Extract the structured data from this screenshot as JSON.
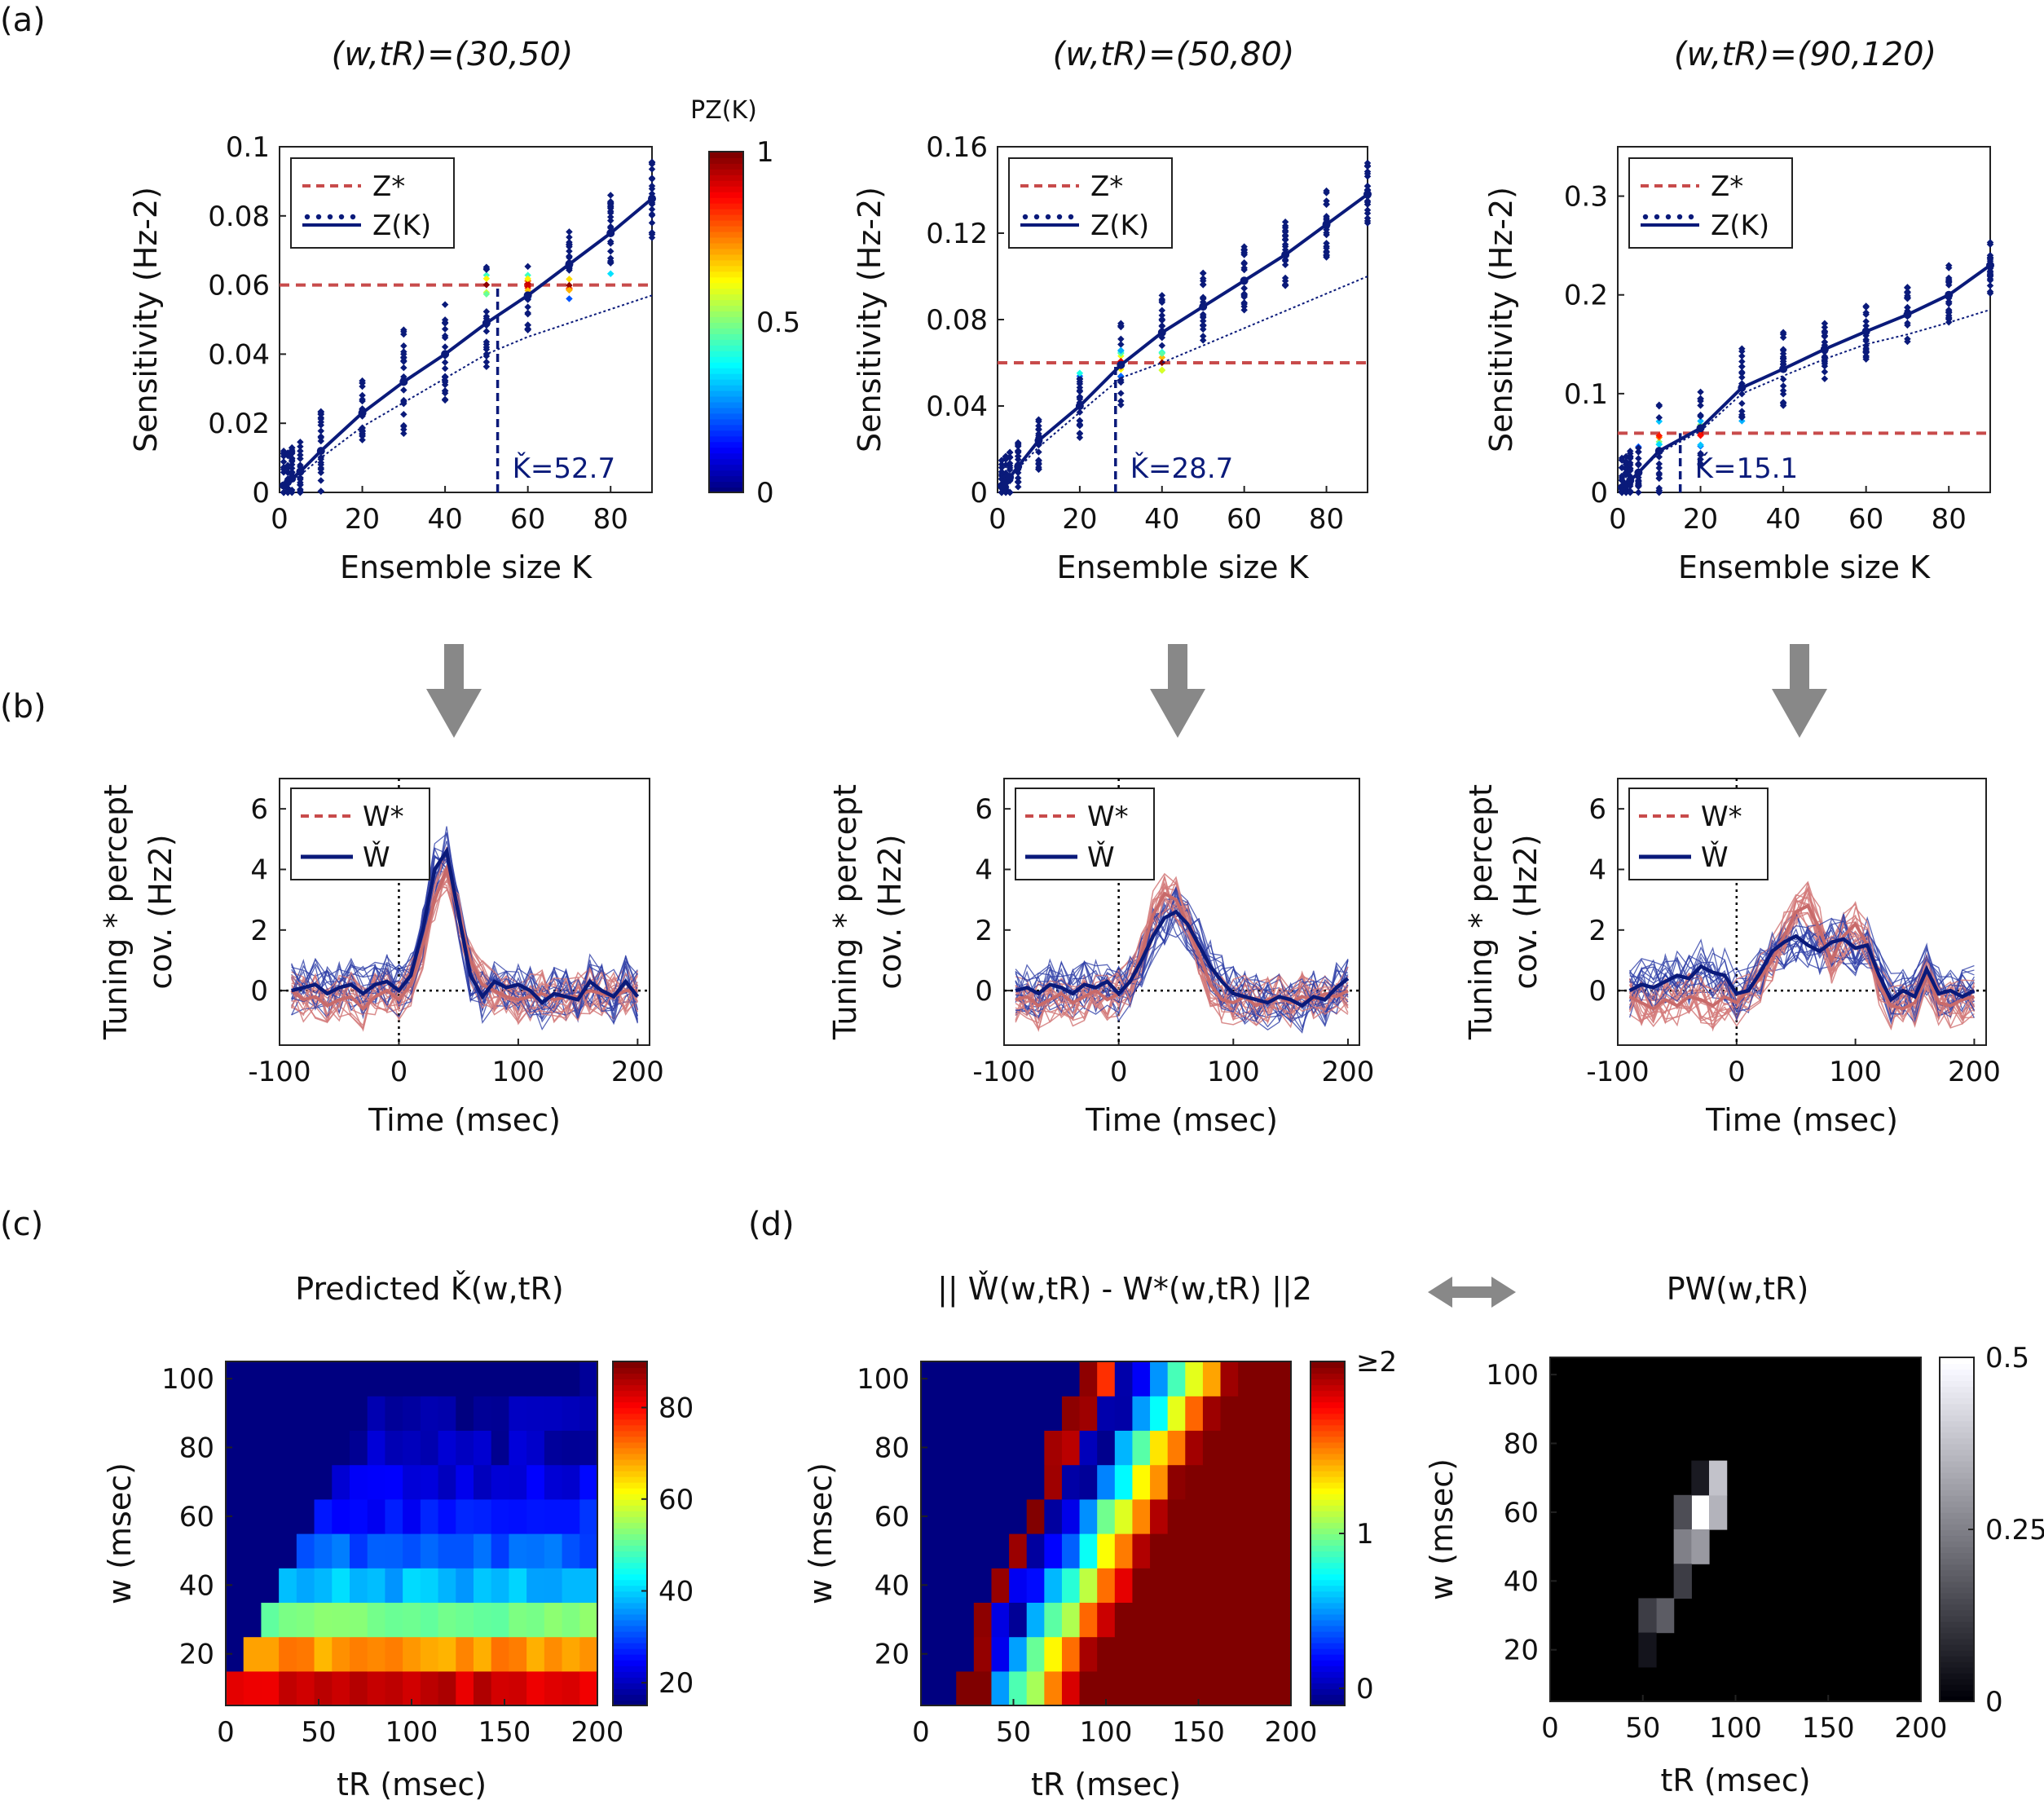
{
  "panel_labels": [
    "(a)",
    "(b)",
    "(c)",
    "(d)"
  ],
  "colors": {
    "navy": "#0a1a7a",
    "red_dashed": "#c84b4b",
    "red_trace": "#d47a7a",
    "arrow": "#888888"
  },
  "panel_a": {
    "titles": [
      "(w,tR)=(30,50)",
      "(w,tR)=(50,80)",
      "(w,tR)=(90,120)"
    ],
    "xlabel": "Ensemble size K",
    "ylabel": "Sensitivity (Hz-2)",
    "legend": [
      "Z*",
      "Z(K)"
    ],
    "colorbar_label": "PZ(K)",
    "colorbar_ticks": [
      "0",
      "0.5",
      "1"
    ],
    "k_labels": [
      "Ǩ=52.7",
      "Ǩ=28.7",
      "Ǩ=15.1"
    ]
  },
  "panel_b": {
    "xlabel": "Time (msec)",
    "ylabel_line1": "Tuning * percept",
    "ylabel_line2": "cov. (Hz2)",
    "legend": [
      "W*",
      "W̌"
    ]
  },
  "panel_c": {
    "title": "Predicted Ǩ(w,tR)",
    "xlabel": "tR (msec)",
    "ylabel": "w (msec)",
    "colorbar_ticks": [
      "20",
      "40",
      "60",
      "80"
    ]
  },
  "panel_d": {
    "title_left": "|| W̌(w,tR) - W*(w,tR) ||2",
    "title_right": "PW(w,tR)",
    "xlabel": "tR (msec)",
    "ylabel": "w (msec)",
    "colorbar_left_ticks": [
      "0",
      "1",
      "≥2"
    ],
    "colorbar_right_ticks": [
      "0",
      "0.25",
      "0.5"
    ]
  },
  "chart_data": [
    {
      "id": "a1",
      "type": "scatter",
      "title": "(w,tR)=(30,50)",
      "xlabel": "Ensemble size K",
      "ylabel": "Sensitivity (Hz-2)",
      "xlim": [
        0,
        90
      ],
      "ylim": [
        0,
        0.1
      ],
      "xticks": [
        0,
        20,
        40,
        60,
        80
      ],
      "yticks": [
        0,
        0.02,
        0.04,
        0.06,
        0.08,
        0.1
      ],
      "ytick_labels": [
        "0",
        "0.02",
        "0.04",
        "0.06",
        "0.08",
        "0.1"
      ],
      "z_star": 0.06,
      "k_check": 52.7,
      "x": [
        1,
        2,
        3,
        5,
        10,
        20,
        30,
        40,
        50,
        60,
        70,
        80,
        90
      ],
      "z_mean": [
        0.002,
        0.003,
        0.004,
        0.006,
        0.012,
        0.023,
        0.032,
        0.04,
        0.049,
        0.057,
        0.066,
        0.075,
        0.085
      ],
      "z_dotted": [
        0.002,
        0.003,
        0.004,
        0.005,
        0.01,
        0.019,
        0.026,
        0.033,
        0.04,
        0.045,
        0.049,
        0.053,
        0.057
      ],
      "spread": [
        0.01,
        0.01,
        0.01,
        0.01,
        0.012,
        0.01,
        0.016,
        0.015,
        0.02,
        0.013,
        0.011,
        0.012,
        0.012
      ]
    },
    {
      "id": "a2",
      "type": "scatter",
      "title": "(w,tR)=(50,80)",
      "xlabel": "Ensemble size K",
      "ylabel": "Sensitivity (Hz-2)",
      "xlim": [
        0,
        90
      ],
      "ylim": [
        0,
        0.16
      ],
      "xticks": [
        0,
        20,
        40,
        60,
        80
      ],
      "yticks": [
        0,
        0.04,
        0.08,
        0.12,
        0.16
      ],
      "ytick_labels": [
        "0",
        "0.04",
        "0.08",
        "0.12",
        "0.16"
      ],
      "z_star": 0.06,
      "k_check": 28.7,
      "x": [
        1,
        2,
        3,
        5,
        10,
        20,
        30,
        40,
        50,
        60,
        70,
        80,
        90
      ],
      "z_mean": [
        0.003,
        0.005,
        0.007,
        0.012,
        0.024,
        0.04,
        0.059,
        0.074,
        0.086,
        0.098,
        0.11,
        0.124,
        0.138
      ],
      "z_dotted": [
        0.003,
        0.005,
        0.007,
        0.011,
        0.021,
        0.037,
        0.053,
        0.06,
        0.068,
        0.076,
        0.084,
        0.092,
        0.1
      ],
      "spread": [
        0.012,
        0.012,
        0.012,
        0.012,
        0.014,
        0.016,
        0.02,
        0.018,
        0.016,
        0.016,
        0.016,
        0.016,
        0.016
      ]
    },
    {
      "id": "a3",
      "type": "scatter",
      "title": "(w,tR)=(90,120)",
      "xlabel": "Ensemble size K",
      "ylabel": "Sensitivity (Hz-2)",
      "xlim": [
        0,
        90
      ],
      "ylim": [
        0,
        0.35
      ],
      "xticks": [
        0,
        20,
        40,
        60,
        80
      ],
      "yticks": [
        0,
        0.1,
        0.2,
        0.3
      ],
      "ytick_labels": [
        "0",
        "0.1",
        "0.2",
        "0.3"
      ],
      "z_star": 0.06,
      "k_check": 15.1,
      "x": [
        1,
        2,
        3,
        5,
        10,
        20,
        30,
        40,
        50,
        60,
        70,
        80,
        90
      ],
      "z_mean": [
        0.005,
        0.008,
        0.012,
        0.02,
        0.042,
        0.065,
        0.106,
        0.125,
        0.145,
        0.163,
        0.18,
        0.2,
        0.23
      ],
      "z_dotted": [
        0.005,
        0.008,
        0.012,
        0.02,
        0.04,
        0.062,
        0.1,
        0.118,
        0.135,
        0.15,
        0.16,
        0.172,
        0.185
      ],
      "spread": [
        0.03,
        0.03,
        0.03,
        0.03,
        0.05,
        0.04,
        0.04,
        0.04,
        0.03,
        0.03,
        0.03,
        0.03,
        0.03
      ]
    },
    {
      "id": "b1",
      "type": "line",
      "xlabel": "Time (msec)",
      "ylabel": "Tuning * percept cov. (Hz2)",
      "xlim": [
        -100,
        210
      ],
      "ylim": [
        -1.8,
        7
      ],
      "xticks": [
        -100,
        0,
        100,
        200
      ],
      "yticks": [
        0,
        2,
        4,
        6
      ],
      "series": [
        {
          "name": "W*",
          "x": [
            -90,
            -80,
            -70,
            -60,
            -50,
            -40,
            -30,
            -20,
            -10,
            0,
            10,
            20,
            30,
            40,
            50,
            60,
            70,
            80,
            90,
            100,
            110,
            120,
            130,
            140,
            150,
            160,
            170,
            180,
            190,
            200
          ],
          "y": [
            0,
            -0.3,
            -0.2,
            -0.5,
            -0.3,
            -0.2,
            -0.6,
            -0.2,
            0,
            -0.3,
            0.2,
            1.5,
            3.0,
            4.0,
            2.5,
            1.0,
            0.2,
            0,
            -0.2,
            -0.3,
            -0.2,
            -0.1,
            -0.3,
            -0.2,
            -0.2,
            0,
            -0.1,
            -0.2,
            0,
            0
          ]
        },
        {
          "name": "W̌",
          "x": [
            -90,
            -80,
            -70,
            -60,
            -50,
            -40,
            -30,
            -20,
            -10,
            0,
            10,
            20,
            30,
            40,
            50,
            60,
            70,
            80,
            90,
            100,
            110,
            120,
            130,
            140,
            150,
            160,
            170,
            180,
            190,
            200
          ],
          "y": [
            0,
            0.1,
            0.2,
            -0.1,
            0.1,
            0.2,
            -0.1,
            0.2,
            0.3,
            0,
            0.5,
            2.0,
            4.0,
            4.6,
            2.5,
            0.5,
            -0.2,
            0.3,
            0.1,
            0.2,
            0,
            -0.4,
            -0.1,
            -0.2,
            -0.3,
            0.3,
            0,
            -0.2,
            0.3,
            -0.2
          ]
        }
      ]
    },
    {
      "id": "b2",
      "type": "line",
      "xlabel": "Time (msec)",
      "ylabel": "Tuning * percept cov. (Hz2)",
      "xlim": [
        -100,
        210
      ],
      "ylim": [
        -1.8,
        7
      ],
      "xticks": [
        -100,
        0,
        100,
        200
      ],
      "yticks": [
        0,
        2,
        4,
        6
      ],
      "series": [
        {
          "name": "W*",
          "x": [
            -90,
            -80,
            -70,
            -60,
            -50,
            -40,
            -30,
            -20,
            -10,
            0,
            10,
            20,
            30,
            40,
            50,
            60,
            70,
            80,
            90,
            100,
            110,
            120,
            130,
            140,
            150,
            160,
            170,
            180,
            190,
            200
          ],
          "y": [
            -0.3,
            -0.2,
            -0.5,
            -0.3,
            -0.1,
            -0.4,
            -0.2,
            0,
            -0.3,
            -0.1,
            0.3,
            1.2,
            2.5,
            3.2,
            3.0,
            2.2,
            1.2,
            0.2,
            -0.3,
            -0.4,
            -0.2,
            -0.5,
            -0.3,
            -0.2,
            -0.4,
            -0.2,
            -0.3,
            -0.1,
            -0.2,
            0
          ]
        },
        {
          "name": "W̌",
          "x": [
            -90,
            -80,
            -70,
            -60,
            -50,
            -40,
            -30,
            -20,
            -10,
            0,
            10,
            20,
            30,
            40,
            50,
            60,
            70,
            80,
            90,
            100,
            110,
            120,
            130,
            140,
            150,
            160,
            170,
            180,
            190,
            200
          ],
          "y": [
            0,
            0.1,
            -0.1,
            0.2,
            0.1,
            -0.1,
            0.2,
            0.1,
            0.3,
            -0.1,
            0.3,
            1.0,
            1.8,
            2.4,
            2.6,
            2.2,
            1.5,
            0.8,
            0.3,
            -0.1,
            -0.2,
            -0.3,
            -0.4,
            -0.2,
            -0.3,
            -0.5,
            -0.2,
            -0.3,
            0.1,
            0.4
          ]
        }
      ]
    },
    {
      "id": "b3",
      "type": "line",
      "xlabel": "Time (msec)",
      "ylabel": "Tuning * percept cov. (Hz2)",
      "xlim": [
        -100,
        210
      ],
      "ylim": [
        -1.8,
        7
      ],
      "xticks": [
        -100,
        0,
        100,
        200
      ],
      "yticks": [
        0,
        2,
        4,
        6
      ],
      "series": [
        {
          "name": "W*",
          "x": [
            -90,
            -80,
            -70,
            -60,
            -50,
            -40,
            -30,
            -20,
            -10,
            0,
            10,
            20,
            30,
            40,
            50,
            60,
            70,
            80,
            90,
            100,
            110,
            120,
            130,
            140,
            150,
            160,
            170,
            180,
            190,
            200
          ],
          "y": [
            -0.2,
            -0.4,
            -0.6,
            -0.3,
            -0.5,
            -0.2,
            -0.3,
            -0.5,
            -0.2,
            -0.4,
            0,
            0.4,
            1.0,
            1.8,
            2.6,
            2.8,
            2.0,
            1.0,
            1.8,
            2.2,
            1.5,
            0.2,
            -0.5,
            -0.6,
            -0.4,
            0.5,
            -0.4,
            -0.5,
            -0.3,
            -0.2
          ]
        },
        {
          "name": "W̌",
          "x": [
            -90,
            -80,
            -70,
            -60,
            -50,
            -40,
            -30,
            -20,
            -10,
            0,
            10,
            20,
            30,
            40,
            50,
            60,
            70,
            80,
            90,
            100,
            110,
            120,
            130,
            140,
            150,
            160,
            170,
            180,
            190,
            200
          ],
          "y": [
            0,
            0.2,
            0.1,
            0.3,
            0.5,
            0.4,
            0.8,
            0.6,
            0.5,
            -0.1,
            0,
            0.6,
            1.3,
            1.6,
            1.8,
            1.5,
            1.3,
            1.6,
            1.7,
            1.4,
            1.5,
            0.5,
            -0.3,
            0,
            -0.2,
            0.7,
            -0.1,
            0,
            -0.2,
            0
          ]
        }
      ]
    },
    {
      "id": "c",
      "type": "heatmap",
      "title": "Predicted Ǩ(w,tR)",
      "xlabel": "tR (msec)",
      "ylabel": "w (msec)",
      "xlim": [
        0,
        200
      ],
      "ylim": [
        5,
        105
      ],
      "xticks": [
        0,
        50,
        100,
        150,
        200
      ],
      "yticks": [
        20,
        40,
        60,
        80,
        100
      ],
      "w_values": [
        10,
        20,
        30,
        40,
        50,
        60,
        70,
        80,
        90,
        100
      ],
      "tR_values": [
        0,
        10,
        20,
        30,
        40,
        50,
        60,
        70,
        80,
        90,
        100,
        110,
        120,
        130,
        140,
        150,
        160,
        170,
        180,
        190,
        200
      ],
      "w_rows": {
        "10": 84,
        "20": 70,
        "30": 52,
        "40": 38,
        "50": 31,
        "60": 26,
        "70": 22,
        "80": 19,
        "90": 17,
        "100": 15
      },
      "w_start_tR": {
        "10": 0,
        "20": 10,
        "30": 20,
        "40": 30,
        "50": 40,
        "60": 50,
        "70": 60,
        "80": 70,
        "90": 80,
        "100": 200
      },
      "color_range": [
        15,
        90
      ]
    },
    {
      "id": "d1",
      "type": "heatmap",
      "title": "|| W̌(w,tR) - W*(w,tR) ||2",
      "xlabel": "tR (msec)",
      "ylabel": "w (msec)",
      "xlim": [
        0,
        200
      ],
      "ylim": [
        5,
        105
      ],
      "xticks": [
        0,
        50,
        100,
        150,
        200
      ],
      "yticks": [
        20,
        40,
        60,
        80,
        100
      ],
      "color_range": [
        0,
        2
      ]
    },
    {
      "id": "d2",
      "type": "heatmap",
      "title": "PW(w,tR)",
      "xlabel": "tR (msec)",
      "ylabel": "w (msec)",
      "xlim": [
        0,
        200
      ],
      "ylim": [
        5,
        105
      ],
      "xticks": [
        0,
        50,
        100,
        150,
        200
      ],
      "yticks": [
        20,
        40,
        60,
        80,
        100
      ],
      "nonzero_cells": [
        {
          "w": 60,
          "tR": 80,
          "p": 0.5
        },
        {
          "w": 60,
          "tR": 70,
          "p": 0.15
        },
        {
          "w": 60,
          "tR": 90,
          "p": 0.35
        },
        {
          "w": 70,
          "tR": 80,
          "p": 0.05
        },
        {
          "w": 70,
          "tR": 90,
          "p": 0.38
        },
        {
          "w": 50,
          "tR": 70,
          "p": 0.25
        },
        {
          "w": 50,
          "tR": 80,
          "p": 0.3
        },
        {
          "w": 40,
          "tR": 70,
          "p": 0.12
        },
        {
          "w": 30,
          "tR": 60,
          "p": 0.18
        },
        {
          "w": 30,
          "tR": 50,
          "p": 0.12
        },
        {
          "w": 20,
          "tR": 50,
          "p": 0.04
        }
      ],
      "color_range": [
        0,
        0.5
      ]
    }
  ]
}
